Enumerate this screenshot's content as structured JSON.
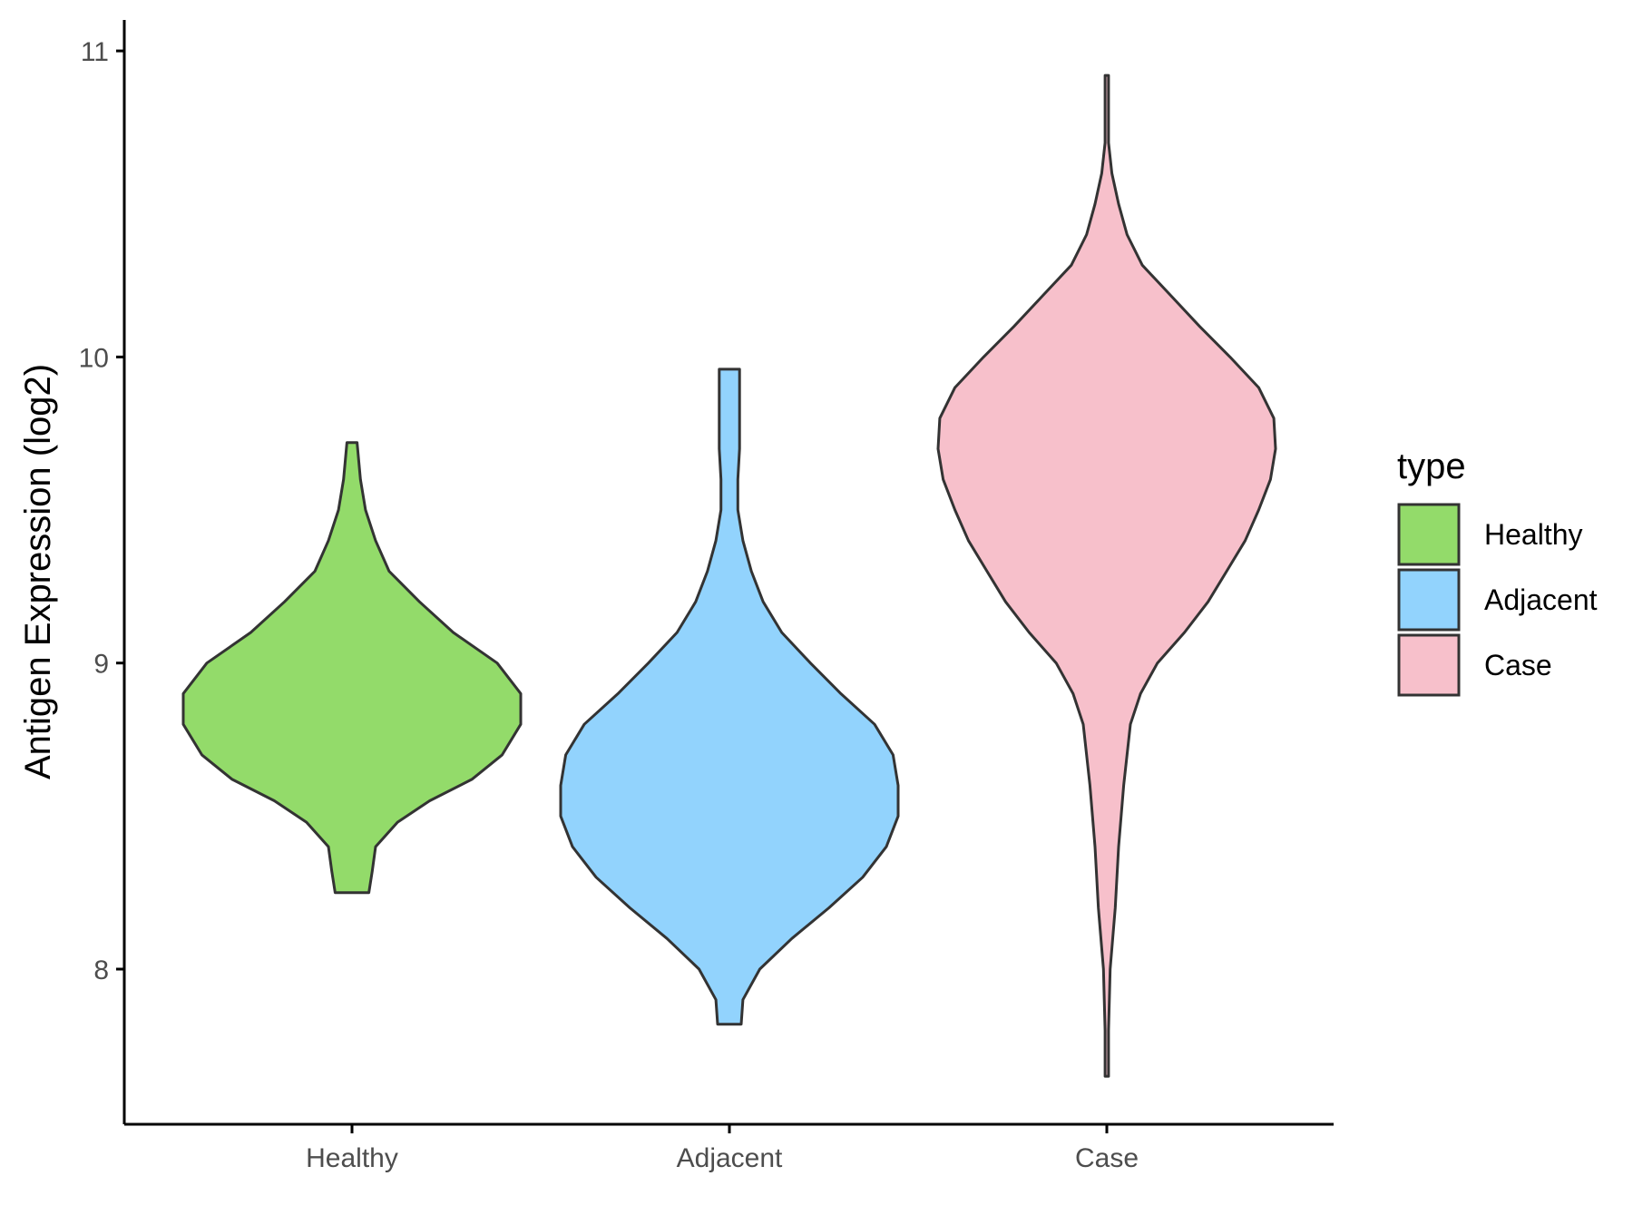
{
  "chart_data": {
    "type": "violin",
    "title": "",
    "xlabel": "",
    "ylabel": "Antigen Expression (log2)",
    "ylim": [
      7.5,
      11.1
    ],
    "yticks": [
      8,
      9,
      10,
      11
    ],
    "grid": false,
    "categories": [
      "Healthy",
      "Adjacent",
      "Case"
    ],
    "legend": {
      "title": "type",
      "position": "right",
      "entries": [
        "Healthy",
        "Adjacent",
        "Case"
      ]
    },
    "series": [
      {
        "name": "Healthy",
        "color": "#93DB6A",
        "min": 8.25,
        "max": 9.72,
        "density": [
          [
            8.25,
            0.1
          ],
          [
            8.32,
            0.12
          ],
          [
            8.4,
            0.14
          ],
          [
            8.48,
            0.27
          ],
          [
            8.55,
            0.46
          ],
          [
            8.62,
            0.71
          ],
          [
            8.7,
            0.89
          ],
          [
            8.8,
            1.0
          ],
          [
            8.9,
            1.0
          ],
          [
            9.0,
            0.86
          ],
          [
            9.1,
            0.6
          ],
          [
            9.2,
            0.4
          ],
          [
            9.3,
            0.22
          ],
          [
            9.4,
            0.14
          ],
          [
            9.5,
            0.08
          ],
          [
            9.6,
            0.05
          ],
          [
            9.72,
            0.03
          ]
        ]
      },
      {
        "name": "Adjacent",
        "color": "#92D3FD",
        "min": 7.82,
        "max": 9.96,
        "density": [
          [
            7.82,
            0.07
          ],
          [
            7.9,
            0.08
          ],
          [
            8.0,
            0.18
          ],
          [
            8.1,
            0.37
          ],
          [
            8.2,
            0.59
          ],
          [
            8.3,
            0.79
          ],
          [
            8.4,
            0.93
          ],
          [
            8.5,
            1.0
          ],
          [
            8.6,
            1.0
          ],
          [
            8.7,
            0.97
          ],
          [
            8.8,
            0.86
          ],
          [
            8.9,
            0.66
          ],
          [
            9.0,
            0.48
          ],
          [
            9.1,
            0.31
          ],
          [
            9.2,
            0.2
          ],
          [
            9.3,
            0.13
          ],
          [
            9.4,
            0.08
          ],
          [
            9.5,
            0.05
          ],
          [
            9.6,
            0.05
          ],
          [
            9.7,
            0.06
          ],
          [
            9.8,
            0.06
          ],
          [
            9.9,
            0.06
          ],
          [
            9.96,
            0.06
          ]
        ]
      },
      {
        "name": "Case",
        "color": "#F7C0CB",
        "min": 7.65,
        "max": 10.92,
        "density": [
          [
            7.65,
            0.01
          ],
          [
            7.8,
            0.01
          ],
          [
            8.0,
            0.02
          ],
          [
            8.2,
            0.05
          ],
          [
            8.4,
            0.07
          ],
          [
            8.6,
            0.1
          ],
          [
            8.8,
            0.14
          ],
          [
            8.9,
            0.2
          ],
          [
            9.0,
            0.3
          ],
          [
            9.1,
            0.46
          ],
          [
            9.2,
            0.6
          ],
          [
            9.3,
            0.71
          ],
          [
            9.4,
            0.82
          ],
          [
            9.5,
            0.9
          ],
          [
            9.6,
            0.97
          ],
          [
            9.7,
            1.0
          ],
          [
            9.8,
            0.99
          ],
          [
            9.9,
            0.9
          ],
          [
            10.0,
            0.73
          ],
          [
            10.1,
            0.55
          ],
          [
            10.2,
            0.38
          ],
          [
            10.3,
            0.21
          ],
          [
            10.4,
            0.12
          ],
          [
            10.5,
            0.07
          ],
          [
            10.6,
            0.03
          ],
          [
            10.7,
            0.01
          ],
          [
            10.8,
            0.01
          ],
          [
            10.92,
            0.01
          ]
        ]
      }
    ]
  }
}
